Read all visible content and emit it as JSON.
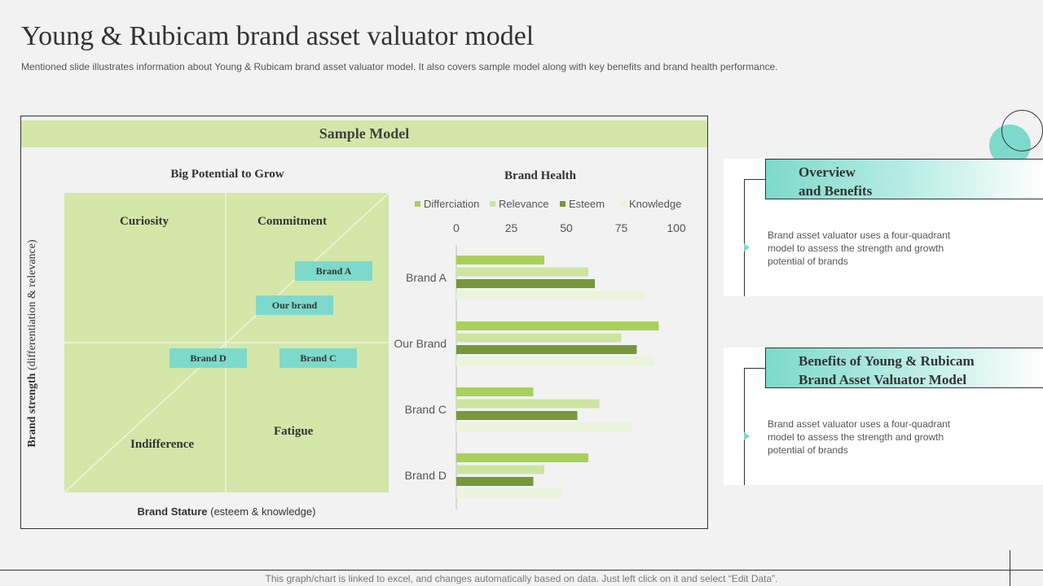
{
  "page": {
    "title": "Young & Rubicam brand asset valuator model",
    "subtitle": "Mentioned slide illustrates information about Young & Rubicam brand asset valuator model. It also covers sample model along with key benefits and brand health performance.",
    "footer": "This graph/chart is linked to excel,  and changes automatically based on data. Just left click on it and select “Edit Data”."
  },
  "model": {
    "header": "Sample Model",
    "quadrant": {
      "title": "Big Potential to Grow",
      "y_axis_bold": "Brand strength",
      "y_axis_rest": " (differentiation & relevance)",
      "x_axis_bold": "Brand Stature",
      "x_axis_rest": " (esteem & knowledge)",
      "labels": {
        "top_left": "Curiosity",
        "top_right": "Commitment",
        "bottom_left": "Indifference",
        "bottom_right": "Fatigue"
      },
      "brands": {
        "brand_a": "Brand A",
        "our_brand": "Our brand",
        "brand_d": "Brand D",
        "brand_c": "Brand C"
      }
    }
  },
  "chart_data": {
    "type": "bar",
    "orientation": "horizontal",
    "title": "Brand Health",
    "categories": [
      "Brand A",
      "Our Brand",
      "Brand C",
      "Brand D"
    ],
    "series": [
      {
        "name": "Differciation",
        "color": "#a9d05a",
        "values": [
          40,
          92,
          35,
          60
        ]
      },
      {
        "name": "Relevance",
        "color": "#cde5a0",
        "values": [
          60,
          75,
          65,
          40
        ]
      },
      {
        "name": "Esteem",
        "color": "#76983a",
        "values": [
          63,
          82,
          55,
          35
        ]
      },
      {
        "name": "Knowledge",
        "color": "#ebf3dc",
        "values": [
          85,
          90,
          80,
          48
        ]
      }
    ],
    "xlim": [
      0,
      100
    ],
    "ticks": [
      "0",
      "25",
      "50",
      "75",
      "100"
    ],
    "legend_position": "top",
    "axis_position": "top",
    "grid": false
  },
  "panels": [
    {
      "heading_line1": "Overview",
      "heading_line2": "and Benefits",
      "body": "Brand asset valuator  uses a four-quadrant  model to assess the strength and growth potential of brands"
    },
    {
      "heading_line1": "Benefits of Young & Rubicam",
      "heading_line2": "Brand Asset Valuator Model",
      "body": "Brand asset valuator  uses a four-quadrant  model to assess the strength and growth potential of brands"
    }
  ],
  "colors": {
    "accent": "#7dd9cb",
    "quadrant_fill": "#d4e6a8",
    "header_fill": "#d4e6a8"
  }
}
